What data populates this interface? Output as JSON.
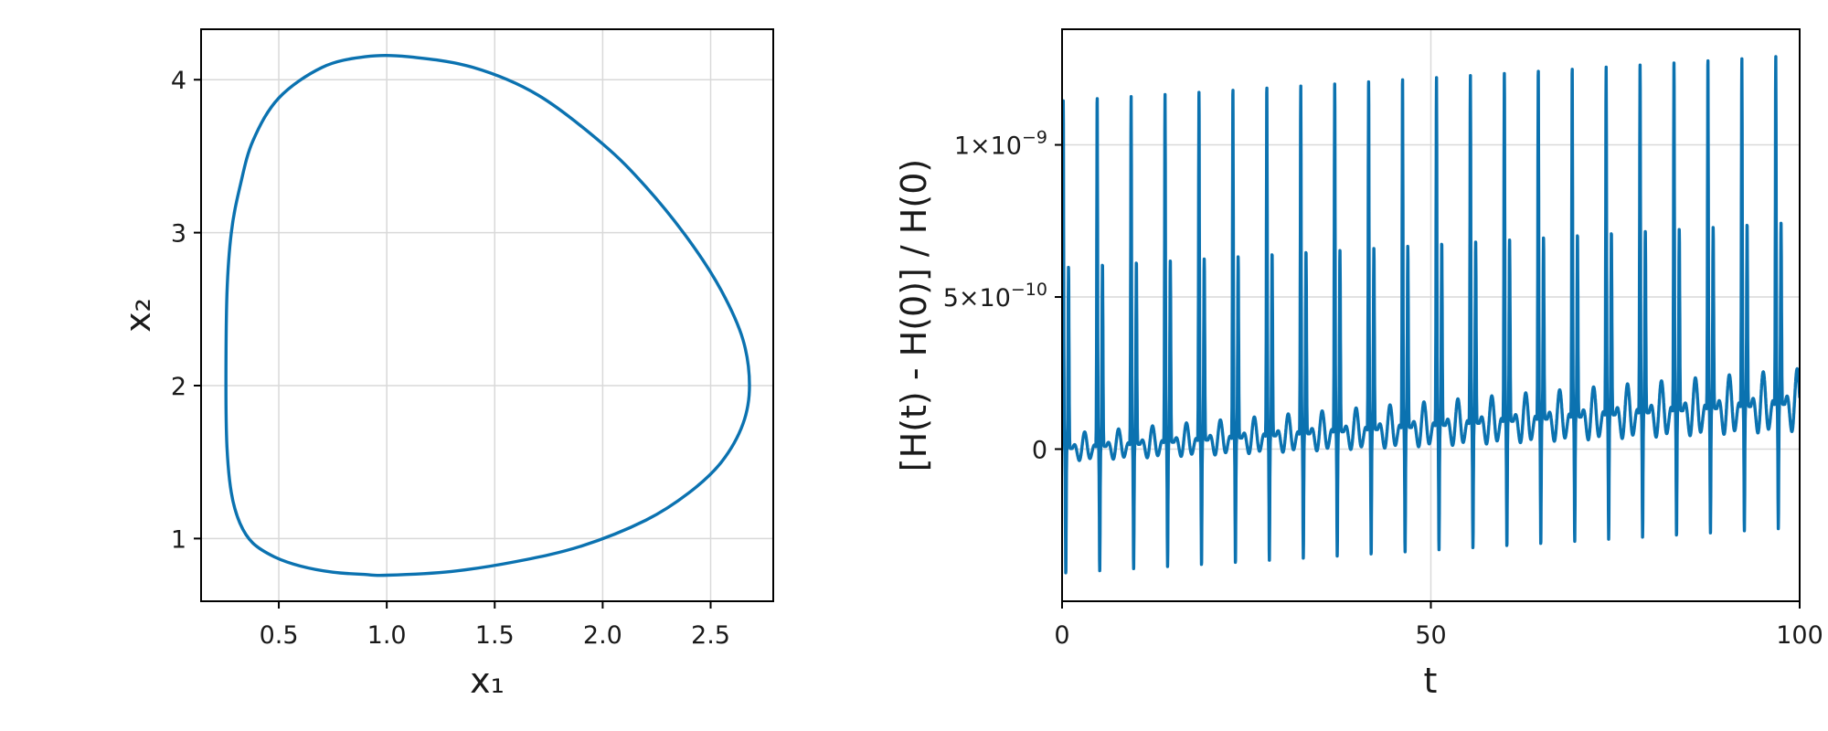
{
  "colors": {
    "series": "#0b72b0"
  },
  "chart_data": [
    {
      "type": "line",
      "title": "",
      "xlabel": "x₁",
      "ylabel": "x₂",
      "xlim": [
        0.14,
        2.79
      ],
      "ylim": [
        0.59,
        4.33
      ],
      "xticks": [
        0.5,
        1.0,
        1.5,
        2.0,
        2.5
      ],
      "xtick_labels": [
        "0.5",
        "1.0",
        "1.5",
        "2.0",
        "2.5"
      ],
      "yticks": [
        1,
        2,
        3,
        4
      ],
      "ytick_labels": [
        "1",
        "2",
        "3",
        "4"
      ],
      "grid": true,
      "legend": "none",
      "series": [
        {
          "closed": true,
          "x": [
            1.0,
            1.3,
            1.6,
            1.9,
            2.2,
            2.4,
            2.55,
            2.65,
            2.68,
            2.65,
            2.55,
            2.4,
            2.2,
            2.0,
            1.7,
            1.4,
            1.1,
            0.9,
            0.7,
            0.5,
            0.38,
            0.32,
            0.28,
            0.26,
            0.255,
            0.26,
            0.28,
            0.32,
            0.38,
            0.48,
            0.6,
            0.75,
            0.9,
            1.0
          ],
          "y": [
            0.76,
            0.785,
            0.85,
            0.95,
            1.12,
            1.3,
            1.5,
            1.75,
            2.0,
            2.3,
            2.62,
            2.95,
            3.3,
            3.58,
            3.9,
            4.08,
            4.15,
            4.15,
            4.08,
            3.88,
            3.6,
            3.3,
            3.0,
            2.6,
            2.0,
            1.6,
            1.3,
            1.1,
            0.97,
            0.88,
            0.82,
            0.78,
            0.765,
            0.76
          ]
        }
      ]
    },
    {
      "type": "line",
      "title": "",
      "xlabel": "t",
      "ylabel": "[H(t) - H(0)] / H(0)",
      "xlim": [
        0,
        100
      ],
      "ylim": [
        -5e-10,
        1.38e-09
      ],
      "xticks": [
        0,
        50,
        100
      ],
      "xtick_labels": [
        "0",
        "50",
        "100"
      ],
      "yticks": [
        0,
        5e-10,
        1e-09
      ],
      "ytick_labels": [
        {
          "mant": "0",
          "exp": ""
        },
        {
          "mant": "5×10",
          "exp": "−10"
        },
        {
          "mant": "1×10",
          "exp": "−9"
        }
      ],
      "grid": true,
      "legend": "none",
      "series": [
        {
          "period": 4.6,
          "peak_main": [
            1.15e-09,
            1.3e-09
          ],
          "peak_second": [
            6e-10,
            7.5e-10
          ],
          "trough": [
            -4.1e-10,
            -2.6e-10
          ],
          "small_osc_amplitude": [
            1e-10,
            2.3e-10
          ],
          "baseline": [
            0,
            1.5e-10
          ]
        }
      ]
    }
  ]
}
